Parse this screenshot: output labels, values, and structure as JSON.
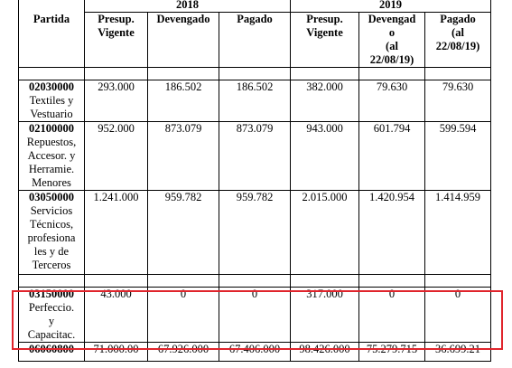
{
  "years": [
    "2018",
    "2019"
  ],
  "columns": {
    "partida": "Partida",
    "presup": "Presup.\nVigente",
    "devengado_2018": "Devengado",
    "pagado_2018": "Pagado",
    "devengado_2019": "Devengad\no\n(al\n22/08/19)",
    "pagado_2019": "Pagado\n(al\n22/08/19)"
  },
  "rows": [
    {
      "code": "02030000",
      "desc": "Textiles y\nVestuario",
      "values": [
        "293.000",
        "186.502",
        "186.502",
        "382.000",
        "79.630",
        "79.630"
      ]
    },
    {
      "code": "02100000",
      "desc": "Repuestos,\nAccesor. y\nHerramie.\nMenores",
      "values": [
        "952.000",
        "873.079",
        "873.079",
        "943.000",
        "601.794",
        "599.594"
      ]
    },
    {
      "code": "03050000",
      "desc": "Servicios\nTécnicos,\nprofesiona\nles y de\nTerceros",
      "values": [
        "1.241.000",
        "959.782",
        "959.782",
        "2.015.000",
        "1.420.954",
        "1.414.959"
      ]
    },
    {
      "code": "03150000",
      "desc": "Perfeccio.\ny\nCapacitac.",
      "values": [
        "43.000",
        "0",
        "0",
        "317.000",
        "0",
        "0"
      ]
    },
    {
      "code": "06060800",
      "desc": "",
      "values": [
        "71.000.00",
        "67.926.000",
        "67.406.000",
        "98.426.000",
        "75.279.715",
        "36.699.21"
      ]
    }
  ]
}
